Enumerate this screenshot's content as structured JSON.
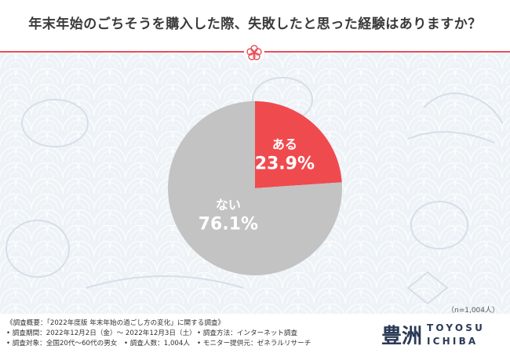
{
  "title": "年末年始のごちそうを購入した際、失敗したと思った経験はありますか？",
  "colors": {
    "accent": "#e8505b",
    "yes_slice": "#ef4b4f",
    "no_slice": "#c3c3c3",
    "background_pattern": "#eef3f8"
  },
  "chart_data": {
    "type": "pie",
    "categories": [
      "ある",
      "ない"
    ],
    "values": [
      23.9,
      76.1
    ],
    "value_labels": [
      "23.9%",
      "76.1%"
    ],
    "colors": [
      "#ef4b4f",
      "#c3c3c3"
    ],
    "title": "年末年始のごちそうを購入した際、失敗したと思った経験はありますか？",
    "sample_note": "（n=1,004人）"
  },
  "footer": {
    "overview": "《調査概要：「2022年度版 年末年始の過ごし方の変化」に関する調査》",
    "period": "• 調査期間：2022年12月2日（金）～ 2022年12月3日（土）",
    "method": "• 調査方法：インターネット調査",
    "target": "• 調査対象：全国20代～60代の男女　• 調査人数：1,004人",
    "provider": "• モニター提供元：ゼネラルリサーチ"
  },
  "logo": {
    "kanji": "豊洲",
    "line1": "TOYOSU",
    "line2": "ICHIBA"
  },
  "icons": {
    "badge": "plum-blossom-icon"
  }
}
